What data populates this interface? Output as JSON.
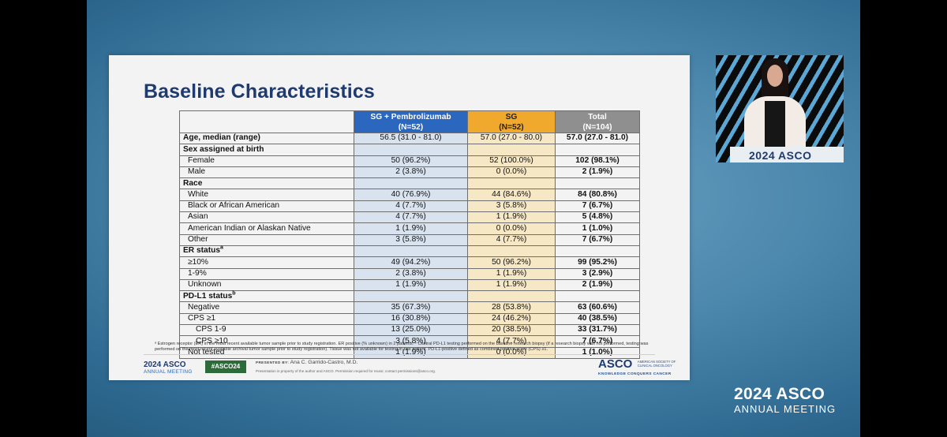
{
  "slide": {
    "title": "Baseline Characteristics",
    "headers": [
      {
        "line1": "SG + Pembrolizumab",
        "line2": "(N=52)"
      },
      {
        "line1": "SG",
        "line2": "(N=52)"
      },
      {
        "line1": "Total",
        "line2": "(N=104)"
      }
    ],
    "rows": [
      {
        "label": "Age, median (range)",
        "level": 0,
        "values": [
          "56.5 (31.0 - 81.0)",
          "57.0 (27.0 - 80.0)",
          "57.0 (27.0 - 81.0)"
        ]
      },
      {
        "label": "Sex assigned at birth",
        "level": 0,
        "values": [
          "",
          "",
          ""
        ]
      },
      {
        "label": "Female",
        "level": 1,
        "values": [
          "50 (96.2%)",
          "52 (100.0%)",
          "102 (98.1%)"
        ]
      },
      {
        "label": "Male",
        "level": 1,
        "values": [
          "2 (3.8%)",
          "0 (0.0%)",
          "2 (1.9%)"
        ]
      },
      {
        "label": "Race",
        "level": 0,
        "values": [
          "",
          "",
          ""
        ]
      },
      {
        "label": "White",
        "level": 1,
        "values": [
          "40 (76.9%)",
          "44 (84.6%)",
          "84 (80.8%)"
        ]
      },
      {
        "label": "Black or African American",
        "level": 1,
        "values": [
          "4 (7.7%)",
          "3 (5.8%)",
          "7 (6.7%)"
        ]
      },
      {
        "label": "Asian",
        "level": 1,
        "values": [
          "4 (7.7%)",
          "1 (1.9%)",
          "5 (4.8%)"
        ]
      },
      {
        "label": "American Indian or Alaskan Native",
        "level": 1,
        "values": [
          "1 (1.9%)",
          "0 (0.0%)",
          "1 (1.0%)"
        ]
      },
      {
        "label": "Other",
        "level": 1,
        "values": [
          "3 (5.8%)",
          "4 (7.7%)",
          "7 (6.7%)"
        ]
      },
      {
        "label": "ER status",
        "sup": "a",
        "level": 0,
        "values": [
          "",
          "",
          ""
        ]
      },
      {
        "label": "≥10%",
        "level": 1,
        "values": [
          "49 (94.2%)",
          "50 (96.2%)",
          "99 (95.2%)"
        ]
      },
      {
        "label": "1-9%",
        "level": 1,
        "values": [
          "2 (3.8%)",
          "1 (1.9%)",
          "3 (2.9%)"
        ]
      },
      {
        "label": "Unknown",
        "level": 1,
        "values": [
          "1 (1.9%)",
          "1 (1.9%)",
          "2 (1.9%)"
        ]
      },
      {
        "label": "PD-L1 status",
        "sup": "b",
        "level": 0,
        "values": [
          "",
          "",
          ""
        ]
      },
      {
        "label": "Negative",
        "level": 1,
        "values": [
          "35 (67.3%)",
          "28 (53.8%)",
          "63 (60.6%)"
        ]
      },
      {
        "label": "CPS ≥1",
        "level": 1,
        "values": [
          "16 (30.8%)",
          "24 (46.2%)",
          "40 (38.5%)"
        ]
      },
      {
        "label": "CPS 1-9",
        "level": 2,
        "values": [
          "13 (25.0%)",
          "20 (38.5%)",
          "33 (31.7%)"
        ]
      },
      {
        "label": "CPS ≥10",
        "level": 2,
        "values": [
          "3 (5.8%)",
          "4 (7.7%)",
          "7 (6.7%)"
        ]
      },
      {
        "label": "Not tested",
        "level": 1,
        "values": [
          "1 (1.9%)",
          "0 (0.0%)",
          "1 (1.0%)"
        ]
      }
    ],
    "footnote": "ᵃ Estrogen receptor (ER) in the most recent available tumor sample prior to study registration. ER positive (% unknown) in 2 patients. ᵇ Central PD-L1 testing performed on the baseline research biopsy (if a research biopsy was not performed, testing was performed on the most recent available archival tumor sample prior to study registration). Tissue was not available for testing in one patient. PD-L1-positive defined as combined positive score (CPS) ≥1.",
    "footer": {
      "meeting_year": "2024 ASCO",
      "meeting_name": "ANNUAL MEETING",
      "hashtag": "#ASCO24",
      "presented_by_label": "PRESENTED BY:",
      "presenter": "Ana C. Garrido-Castro, M.D.",
      "permission_note": "Presentation is property of the author and ASCO. Permission required for reuse; contact permissions@asco.org.",
      "org_word": "ASCO",
      "org_full": "AMERICAN SOCIETY OF CLINICAL ONCOLOGY",
      "org_tagline": "KNOWLEDGE CONQUERS CANCER"
    }
  },
  "speaker": {
    "podium_text": "2024 ASCO"
  },
  "brand": {
    "year_word": "2024 ASCO",
    "meeting": "ANNUAL MEETING"
  },
  "colors": {
    "arm1": "#2b67be",
    "arm2": "#f0a92d",
    "total": "#8f8f8f",
    "title": "#1f3a6e"
  }
}
